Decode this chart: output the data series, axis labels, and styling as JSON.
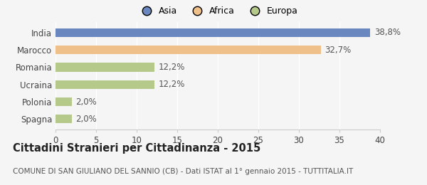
{
  "categories": [
    "India",
    "Marocco",
    "Romania",
    "Ucraina",
    "Polonia",
    "Spagna"
  ],
  "values": [
    38.8,
    32.7,
    12.2,
    12.2,
    2.0,
    2.0
  ],
  "labels": [
    "38,8%",
    "32,7%",
    "12,2%",
    "12,2%",
    "2,0%",
    "2,0%"
  ],
  "colors": [
    "#6b87c0",
    "#f0c08a",
    "#b5c98a",
    "#b5c98a",
    "#b5c98a",
    "#b5c98a"
  ],
  "legend_items": [
    {
      "label": "Asia",
      "color": "#6b87c0"
    },
    {
      "label": "Africa",
      "color": "#f0c08a"
    },
    {
      "label": "Europa",
      "color": "#b5c98a"
    }
  ],
  "xlim": [
    0,
    40
  ],
  "xticks": [
    0,
    5,
    10,
    15,
    20,
    25,
    30,
    35,
    40
  ],
  "title": "Cittadini Stranieri per Cittadinanza - 2015",
  "subtitle": "COMUNE DI SAN GIULIANO DEL SANNIO (CB) - Dati ISTAT al 1° gennaio 2015 - TUTTITALIA.IT",
  "background_color": "#f5f5f5",
  "bar_height": 0.5,
  "label_fontsize": 8.5,
  "tick_fontsize": 8.5,
  "title_fontsize": 10.5,
  "subtitle_fontsize": 7.5
}
